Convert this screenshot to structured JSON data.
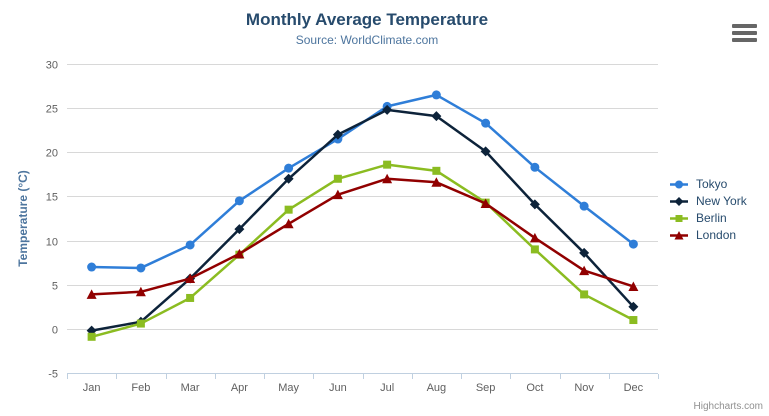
{
  "chart_data": {
    "type": "line",
    "title": "Monthly Average Temperature",
    "subtitle": "Source: WorldClimate.com",
    "xlabel": "",
    "ylabel": "Temperature (°C)",
    "categories": [
      "Jan",
      "Feb",
      "Mar",
      "Apr",
      "May",
      "Jun",
      "Jul",
      "Aug",
      "Sep",
      "Oct",
      "Nov",
      "Dec"
    ],
    "ylim": [
      -5,
      30
    ],
    "ytick_interval": 5,
    "grid": true,
    "legend_position": "right",
    "series": [
      {
        "name": "Tokyo",
        "color": "#2f7ed8",
        "marker": "circle",
        "values": [
          7.0,
          6.9,
          9.5,
          14.5,
          18.2,
          21.5,
          25.2,
          26.5,
          23.3,
          18.3,
          13.9,
          9.6
        ]
      },
      {
        "name": "New York",
        "color": "#0d233a",
        "marker": "diamond",
        "values": [
          -0.2,
          0.8,
          5.7,
          11.3,
          17.0,
          22.0,
          24.8,
          24.1,
          20.1,
          14.1,
          8.6,
          2.5
        ]
      },
      {
        "name": "Berlin",
        "color": "#8bbc21",
        "marker": "square",
        "values": [
          -0.9,
          0.6,
          3.5,
          8.4,
          13.5,
          17.0,
          18.6,
          17.9,
          14.3,
          9.0,
          3.9,
          1.0
        ]
      },
      {
        "name": "London",
        "color": "#910000",
        "marker": "triangle",
        "values": [
          3.9,
          4.2,
          5.7,
          8.5,
          11.9,
          15.2,
          17.0,
          16.6,
          14.2,
          10.3,
          6.6,
          4.8
        ]
      }
    ],
    "axis_colors": {
      "grid_line": "#d8d8d8",
      "axis_line": "#c0d0e0",
      "tick_label": "#606060",
      "axis_title": "#4d759e"
    }
  },
  "credits": {
    "label": "Highcharts.com"
  }
}
